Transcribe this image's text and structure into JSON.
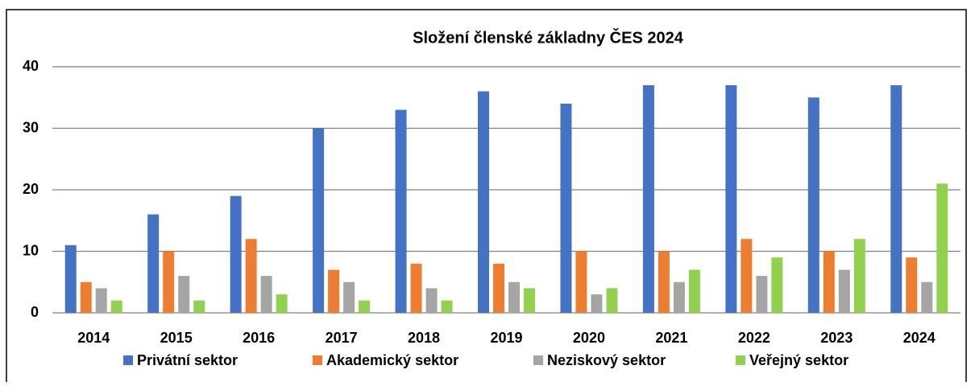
{
  "chart_data": {
    "type": "bar",
    "title": "Složení členské základny ČES 2024",
    "categories": [
      "2014",
      "2015",
      "2016",
      "2017",
      "2018",
      "2019",
      "2020",
      "2021",
      "2022",
      "2023",
      "2024"
    ],
    "series": [
      {
        "name": "Privátní sektor",
        "color": "#4472c4",
        "values": [
          11,
          16,
          19,
          30,
          33,
          36,
          34,
          37,
          37,
          35,
          37
        ]
      },
      {
        "name": "Akademický sektor",
        "color": "#ed7d31",
        "values": [
          5,
          10,
          12,
          7,
          8,
          8,
          10,
          10,
          12,
          10,
          9
        ]
      },
      {
        "name": "Neziskový sektor",
        "color": "#a5a5a5",
        "values": [
          4,
          6,
          6,
          5,
          4,
          5,
          3,
          5,
          6,
          7,
          5
        ]
      },
      {
        "name": "Veřejný sektor",
        "color": "#92d050",
        "values": [
          2,
          2,
          3,
          2,
          2,
          4,
          4,
          7,
          9,
          12,
          21
        ]
      }
    ],
    "ylim": [
      0,
      40
    ],
    "yticks": [
      0,
      10,
      20,
      30,
      40
    ],
    "grid": true,
    "legend": "bottom"
  }
}
